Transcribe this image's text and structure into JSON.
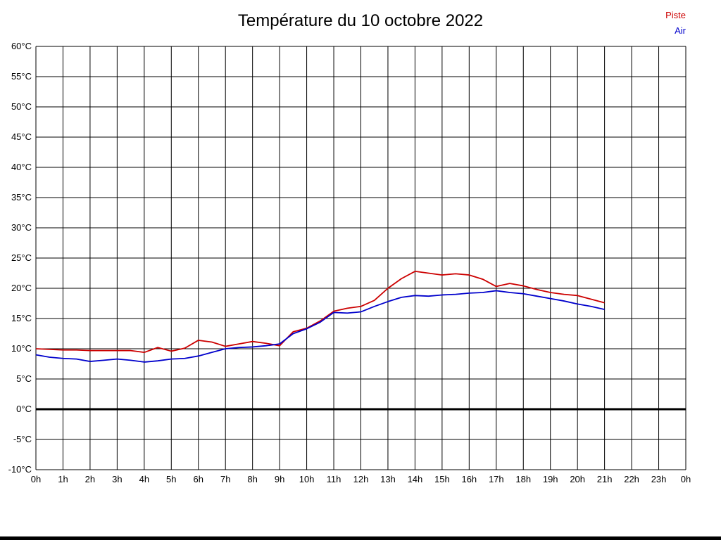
{
  "chart_data": {
    "type": "line",
    "title": "Température du 10 octobre 2022",
    "xlabel": "",
    "ylabel": "",
    "x_unit": "h",
    "y_unit": "°C",
    "xlim": [
      0,
      24
    ],
    "ylim": [
      -10,
      60
    ],
    "grid": true,
    "grid_color": "#000000",
    "zero_line_color": "#000000",
    "legend_position": "top-right",
    "y_ticks": [
      {
        "value": 60,
        "label": "60°C"
      },
      {
        "value": 55,
        "label": "55°C"
      },
      {
        "value": 50,
        "label": "50°C"
      },
      {
        "value": 45,
        "label": "45°C"
      },
      {
        "value": 40,
        "label": "40°C"
      },
      {
        "value": 35,
        "label": "35°C"
      },
      {
        "value": 30,
        "label": "30°C"
      },
      {
        "value": 25,
        "label": "25°C"
      },
      {
        "value": 20,
        "label": "20°C"
      },
      {
        "value": 15,
        "label": "15°C"
      },
      {
        "value": 10,
        "label": "10°C"
      },
      {
        "value": 5,
        "label": "5°C"
      },
      {
        "value": 0,
        "label": "0°C"
      },
      {
        "value": -5,
        "label": "-5°C"
      },
      {
        "value": -10,
        "label": "-10°C"
      }
    ],
    "x_ticks": [
      {
        "value": 0,
        "label": "0h"
      },
      {
        "value": 1,
        "label": "1h"
      },
      {
        "value": 2,
        "label": "2h"
      },
      {
        "value": 3,
        "label": "3h"
      },
      {
        "value": 4,
        "label": "4h"
      },
      {
        "value": 5,
        "label": "5h"
      },
      {
        "value": 6,
        "label": "6h"
      },
      {
        "value": 7,
        "label": "7h"
      },
      {
        "value": 8,
        "label": "8h"
      },
      {
        "value": 9,
        "label": "9h"
      },
      {
        "value": 10,
        "label": "10h"
      },
      {
        "value": 11,
        "label": "11h"
      },
      {
        "value": 12,
        "label": "12h"
      },
      {
        "value": 13,
        "label": "13h"
      },
      {
        "value": 14,
        "label": "14h"
      },
      {
        "value": 15,
        "label": "15h"
      },
      {
        "value": 16,
        "label": "16h"
      },
      {
        "value": 17,
        "label": "17h"
      },
      {
        "value": 18,
        "label": "18h"
      },
      {
        "value": 19,
        "label": "19h"
      },
      {
        "value": 20,
        "label": "20h"
      },
      {
        "value": 21,
        "label": "21h"
      },
      {
        "value": 22,
        "label": "22h"
      },
      {
        "value": 23,
        "label": "23h"
      },
      {
        "value": 24,
        "label": "0h"
      }
    ],
    "x": [
      0,
      0.5,
      1,
      1.5,
      2,
      2.5,
      3,
      3.5,
      4,
      4.5,
      5,
      5.5,
      6,
      6.5,
      7,
      7.5,
      8,
      8.5,
      9,
      9.5,
      10,
      10.5,
      11,
      11.5,
      12,
      12.5,
      13,
      13.5,
      14,
      14.5,
      15,
      15.5,
      16,
      16.5,
      17,
      17.5,
      18,
      18.5,
      19,
      19.5,
      20,
      20.5,
      21
    ],
    "series": [
      {
        "name": "Piste",
        "color": "#cc0000",
        "values": [
          10.0,
          9.9,
          9.8,
          9.8,
          9.7,
          9.7,
          9.7,
          9.7,
          9.4,
          10.2,
          9.6,
          10.1,
          11.4,
          11.1,
          10.4,
          10.8,
          11.2,
          10.9,
          10.5,
          12.8,
          13.4,
          14.6,
          16.2,
          16.7,
          17.0,
          18.0,
          20.0,
          21.6,
          22.8,
          22.5,
          22.2,
          22.4,
          22.2,
          21.5,
          20.3,
          20.8,
          20.4,
          19.8,
          19.3,
          19.0,
          18.8,
          18.2,
          17.6
        ]
      },
      {
        "name": "Air",
        "color": "#0000cc",
        "values": [
          9.0,
          8.6,
          8.4,
          8.3,
          7.9,
          8.1,
          8.3,
          8.1,
          7.8,
          8.0,
          8.3,
          8.4,
          8.8,
          9.4,
          10.0,
          10.2,
          10.3,
          10.5,
          10.8,
          12.5,
          13.3,
          14.4,
          16.0,
          15.9,
          16.1,
          17.0,
          17.8,
          18.5,
          18.8,
          18.7,
          18.9,
          19.0,
          19.2,
          19.3,
          19.6,
          19.3,
          19.1,
          18.7,
          18.3,
          17.9,
          17.4,
          17.0,
          16.5
        ]
      }
    ]
  }
}
